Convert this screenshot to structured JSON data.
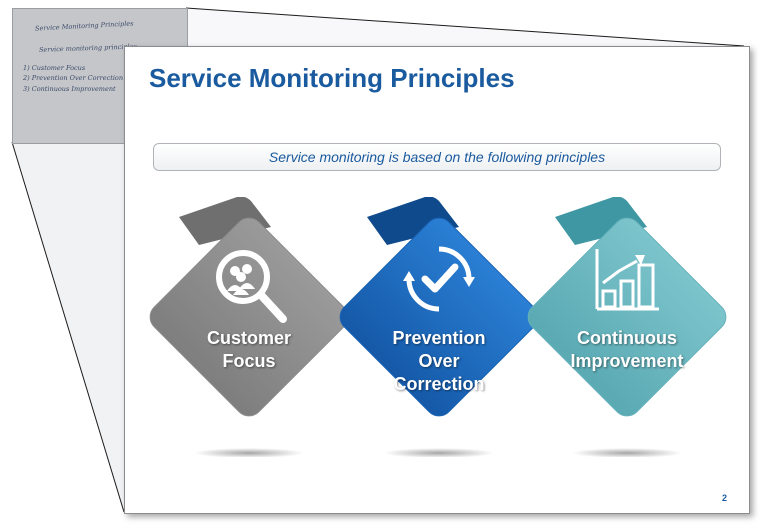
{
  "slide": {
    "title": "Service Monitoring Principles",
    "subtitle": "Service monitoring is based on the following principles",
    "page_number": "2"
  },
  "sketch": {
    "lines": [
      "Service Monitoring Principles",
      "Service monitoring principles ...",
      "1) Customer Focus",
      "2) Prevention Over Correction",
      "3) Continuous Improvement"
    ]
  },
  "principles": [
    {
      "lines": [
        "Customer",
        "Focus"
      ],
      "icon": "magnifier-people-icon",
      "color": "#8a8a8a"
    },
    {
      "lines": [
        "Prevention",
        "Over",
        "Correction"
      ],
      "icon": "circular-check-icon",
      "color": "#1f6dc4"
    },
    {
      "lines": [
        "Continuous",
        "Improvement"
      ],
      "icon": "bar-chart-growth-icon",
      "color": "#6ab6bf"
    }
  ]
}
